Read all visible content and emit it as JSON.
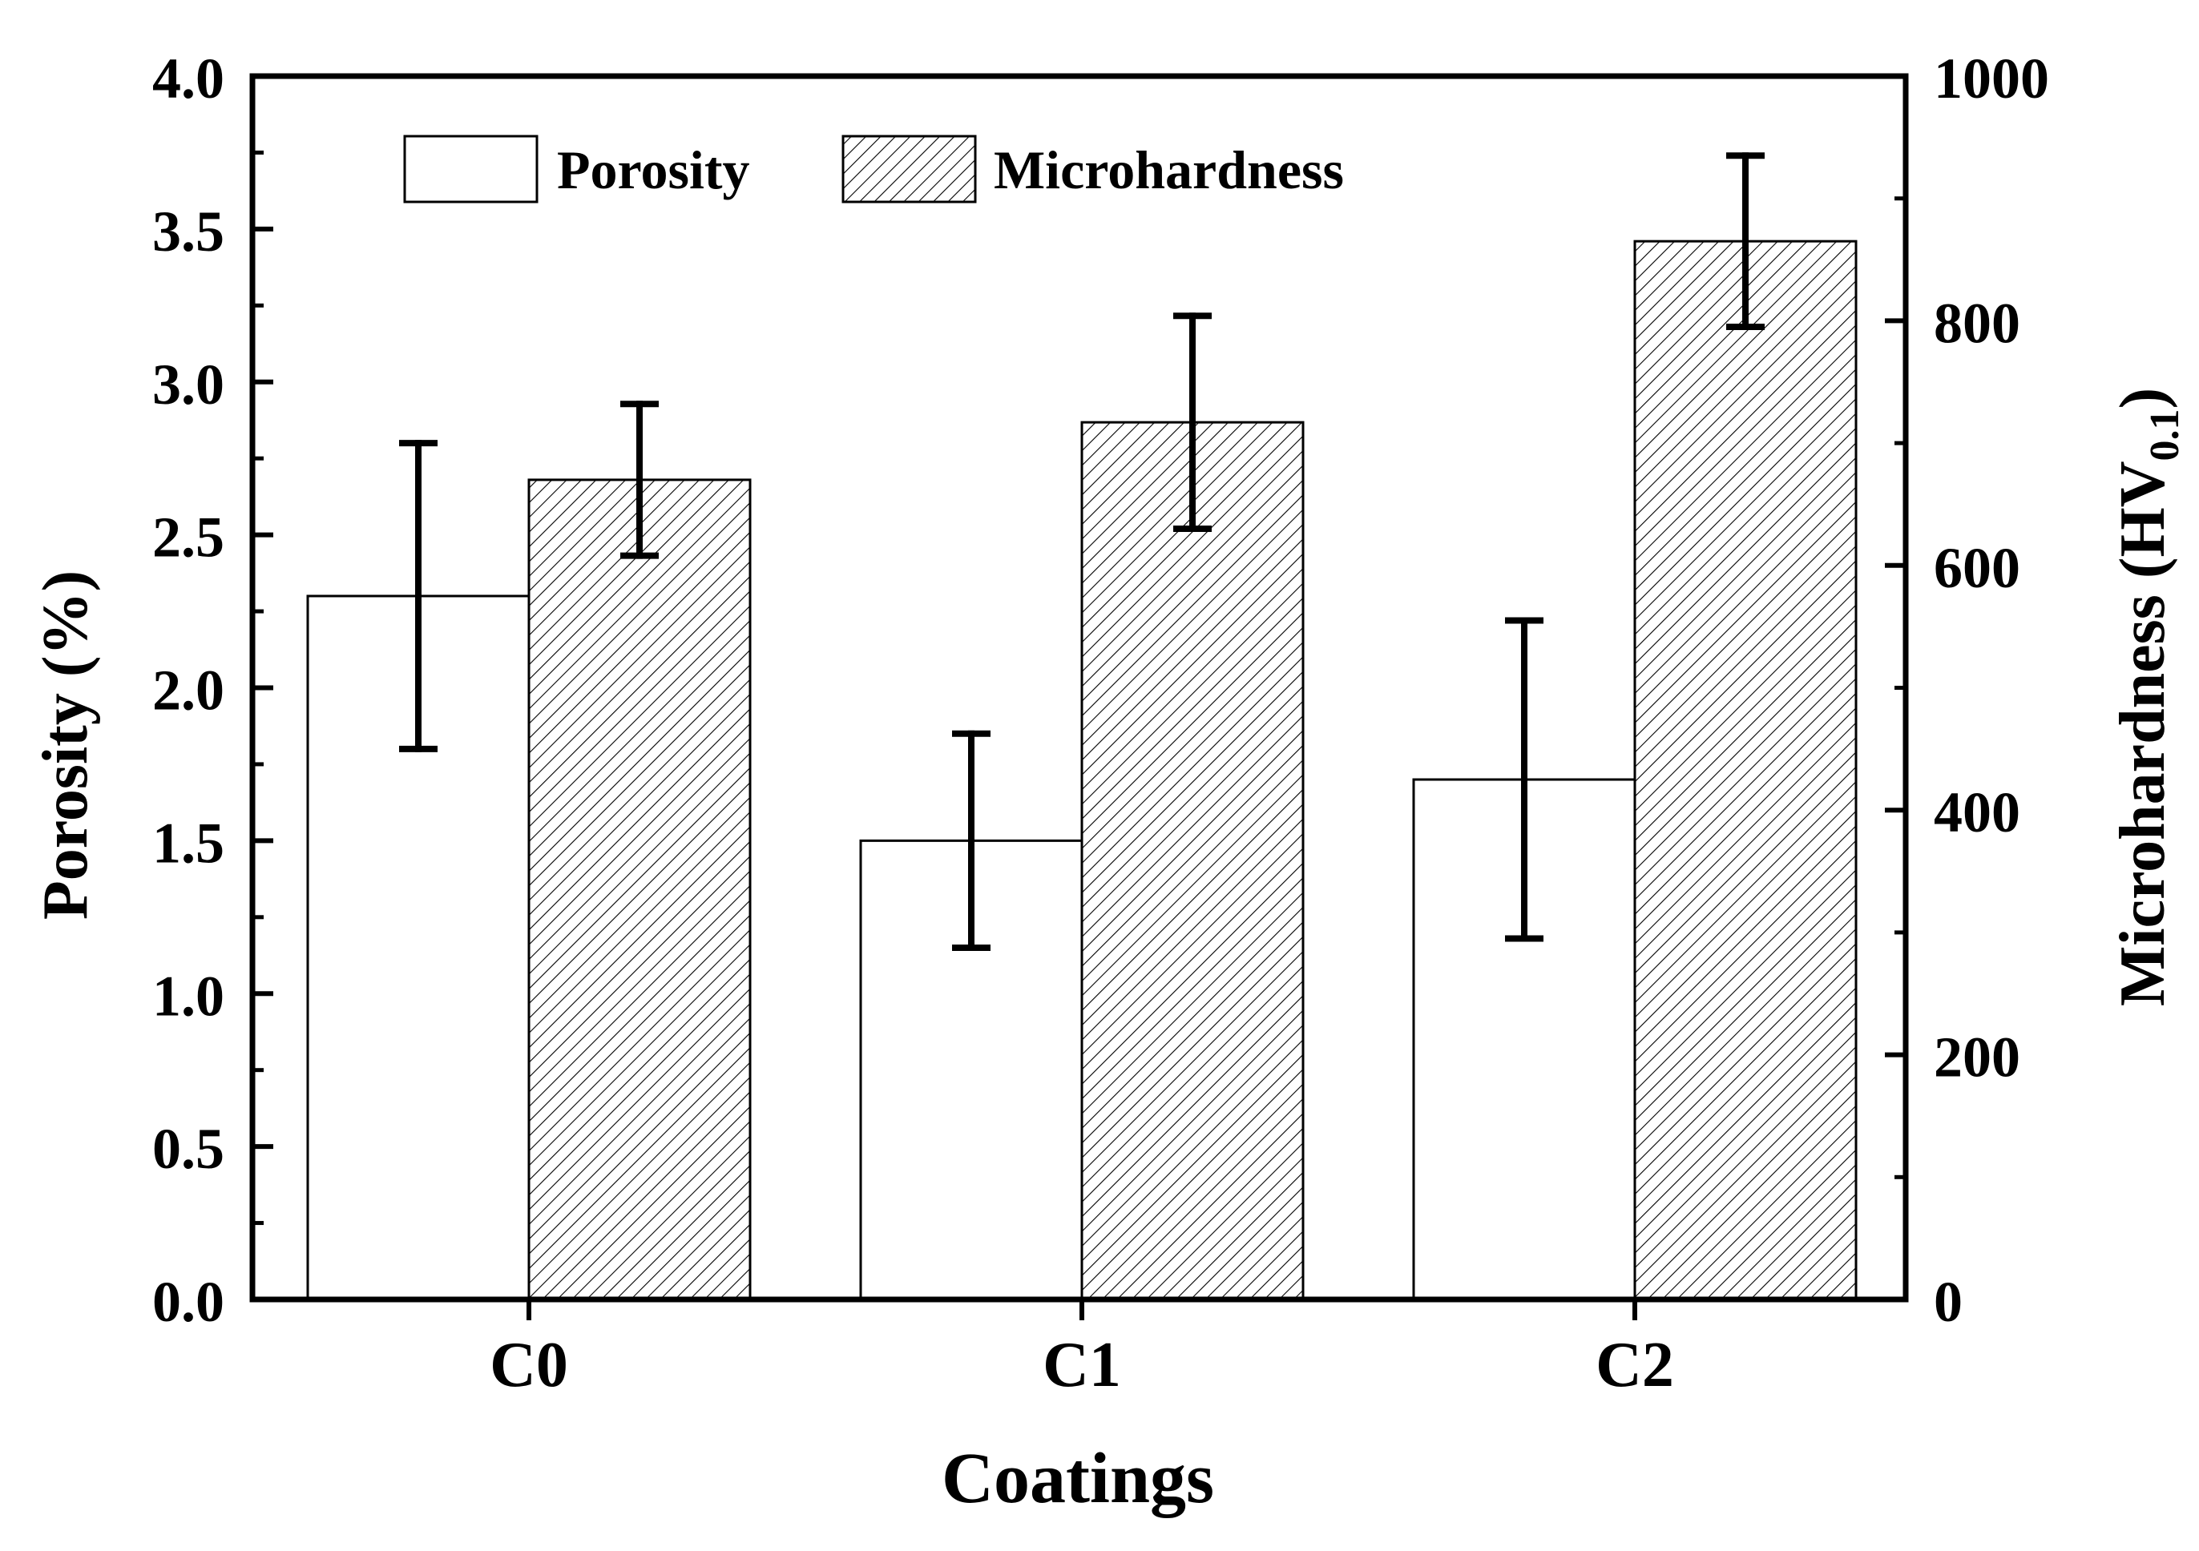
{
  "chart_data": {
    "type": "bar",
    "title": "",
    "categories": [
      "C0",
      "C1",
      "C2"
    ],
    "xlabel": "Coatings",
    "y_left": {
      "label": "Porosity (%)",
      "range": [
        0,
        4.0
      ],
      "ticks": [
        "0.0",
        "0.5",
        "1.0",
        "1.5",
        "2.0",
        "2.5",
        "3.0",
        "3.5",
        "4.0"
      ]
    },
    "y_right": {
      "label_main": "Microhardness (HV",
      "label_sub": "0.1",
      "label_close": ")",
      "range": [
        0,
        1000
      ],
      "ticks": [
        "0",
        "200",
        "400",
        "600",
        "800",
        "1000"
      ]
    },
    "series": [
      {
        "name": "Porosity",
        "axis": "left",
        "fill": "plain",
        "values": [
          2.3,
          1.5,
          1.7
        ],
        "error": [
          0.5,
          0.35,
          0.52
        ]
      },
      {
        "name": "Microhardness",
        "axis": "right",
        "fill": "hatched",
        "values": [
          670,
          717,
          865
        ],
        "error": [
          62,
          87,
          70
        ]
      }
    ],
    "legend": {
      "position": "top-left",
      "items": [
        "Porosity",
        "Microhardness"
      ]
    },
    "colors": {
      "axis": "#000000",
      "bar_fill": "#ffffff",
      "hatch": "#000000"
    }
  }
}
